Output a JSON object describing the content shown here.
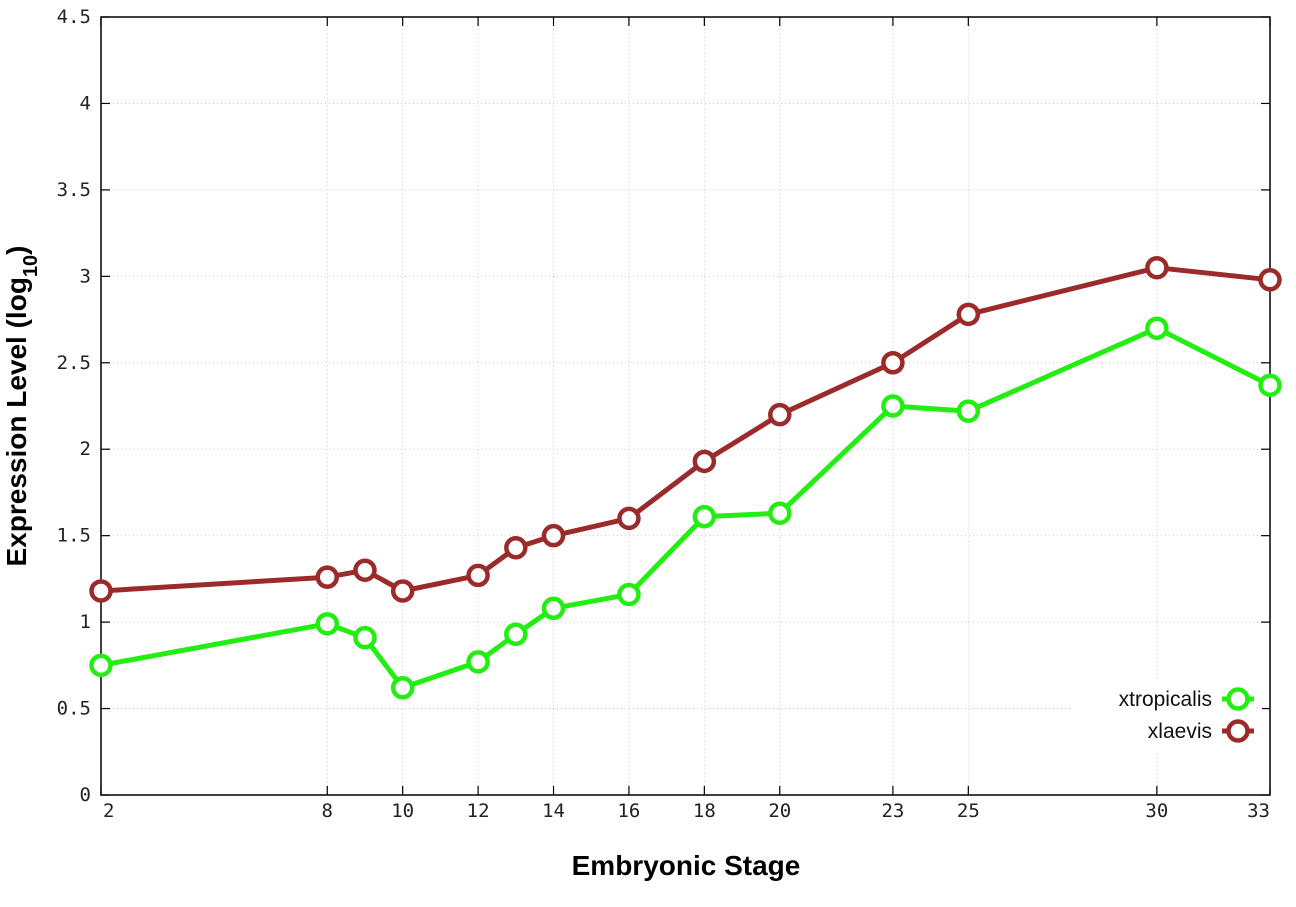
{
  "chart_data": {
    "type": "line",
    "xlabel": "Embryonic Stage",
    "ylabel_main": "Expression Level (log",
    "ylabel_sub": "10",
    "ylabel_close": ")",
    "xlim": [
      2,
      33
    ],
    "ylim": [
      0,
      4.5
    ],
    "x_ticks": [
      2,
      8,
      10,
      12,
      14,
      16,
      18,
      20,
      23,
      25,
      30,
      33
    ],
    "y_ticks": [
      0,
      0.5,
      1,
      1.5,
      2,
      2.5,
      3,
      3.5,
      4,
      4.5
    ],
    "y_tick_labels": [
      "0",
      "0.5",
      "1",
      "1.5",
      "2",
      "2.5",
      "3",
      "3.5",
      "4",
      "4.5"
    ],
    "grid": true,
    "legend_position": "bottom-right",
    "x": [
      2,
      8,
      9,
      10,
      12,
      13,
      14,
      16,
      18,
      20,
      23,
      25,
      30,
      33
    ],
    "series": [
      {
        "name": "xtropicalis",
        "color": "#22ee11",
        "values": [
          0.75,
          0.99,
          0.91,
          0.62,
          0.77,
          0.93,
          1.08,
          1.16,
          1.61,
          1.63,
          2.25,
          2.22,
          2.7,
          2.37
        ]
      },
      {
        "name": "xlaevis",
        "color": "#9b2a2a",
        "values": [
          1.18,
          1.26,
          1.3,
          1.18,
          1.27,
          1.43,
          1.5,
          1.6,
          1.93,
          2.2,
          2.5,
          2.78,
          3.05,
          2.98
        ]
      }
    ]
  }
}
